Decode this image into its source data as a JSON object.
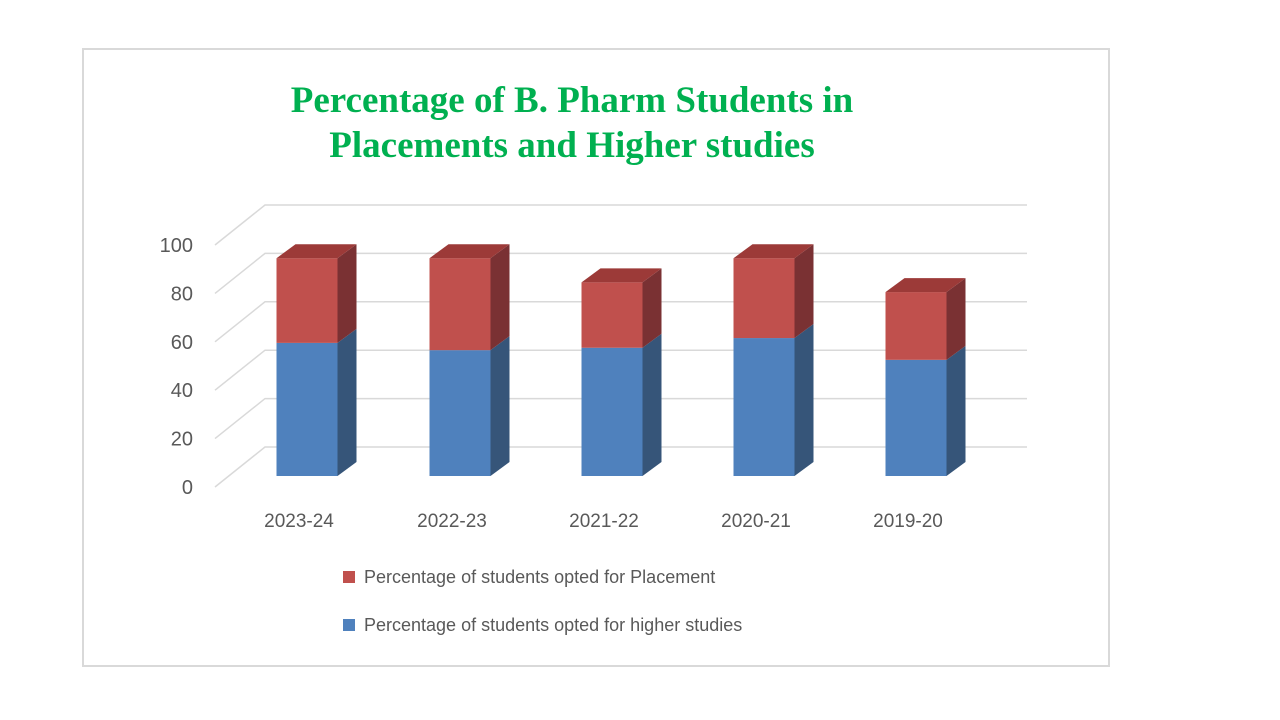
{
  "chart_data": {
    "type": "bar",
    "subtype": "3d-stacked-column",
    "title": "Percentage of B. Pharm Students in Placements and Higher studies",
    "title_lines": [
      "Percentage of B. Pharm Students in",
      "Placements and Higher studies"
    ],
    "title_color": "#00B050",
    "categories": [
      "2023-24",
      "2022-23",
      "2021-22",
      "2020-21",
      "2019-20"
    ],
    "series": [
      {
        "name": "Percentage of students opted for Placement",
        "stack": "top",
        "values": [
          35,
          38,
          27,
          33,
          28
        ],
        "colors": {
          "front": "#C0504D",
          "side": "#7A3133",
          "top": "#9C3A38"
        }
      },
      {
        "name": "Percentage of students opted for higher studies",
        "stack": "bottom",
        "values": [
          55,
          52,
          53,
          57,
          48
        ],
        "colors": {
          "front": "#4F81BD",
          "side": "#365579",
          "top": "#3D639B"
        }
      }
    ],
    "y_axis": {
      "min": 0,
      "max": 100,
      "tick_step": 20,
      "ticks": [
        0,
        20,
        40,
        60,
        80,
        100
      ]
    },
    "xlabel": "",
    "ylabel": "",
    "gridlines": true,
    "gridline_color": "#D9D9D9",
    "axis_text_color": "#595959",
    "legend_position": "bottom",
    "panel_border_color": "#D9D9D9",
    "background": "#FFFFFF"
  }
}
